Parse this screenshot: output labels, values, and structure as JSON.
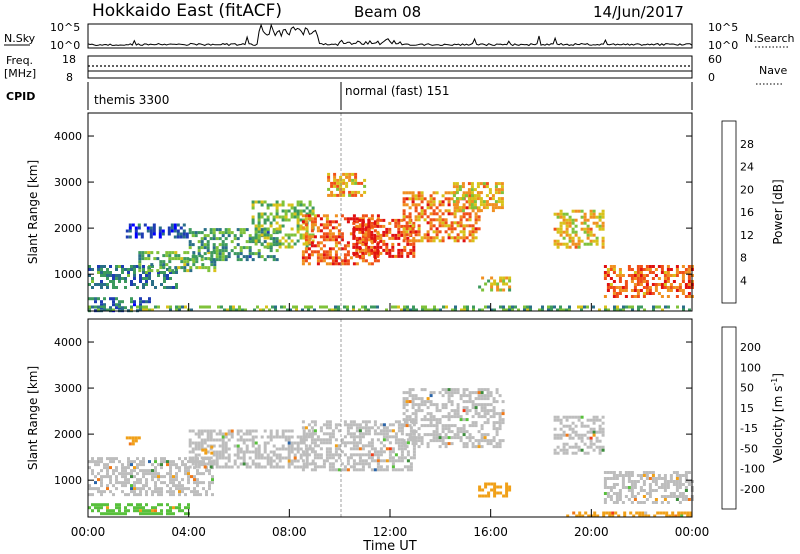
{
  "header": {
    "station": "Hokkaido East (fitACF)",
    "beam": "Beam 08",
    "date": "14/Jun/2017"
  },
  "nsky_panel": {
    "left_label": "N.Sky",
    "right_label": "N.Search",
    "left_ticks": [
      "10^5",
      "10^0"
    ],
    "right_ticks": [
      "10^5",
      "10^0"
    ]
  },
  "freq_panel": {
    "left_label_1": "Freq.",
    "left_label_2": "[MHz]",
    "right_label": "Nave",
    "left_ticks": [
      "18",
      "8"
    ],
    "right_ticks": [
      "60",
      "0"
    ]
  },
  "cpid_panel": {
    "label": "CPID",
    "modes": [
      "themis 3300",
      "normal (fast) 151"
    ]
  },
  "colors": {
    "power_scale": [
      "#0000ff",
      "#1e3cb4",
      "#2a6e88",
      "#3d9a5e",
      "#7fc23a",
      "#d8c21a",
      "#f09020",
      "#f05018",
      "#e01010"
    ],
    "velocity_scale": [
      "#0000dd",
      "#2a64a8",
      "#3c8c3c",
      "#58c03c",
      "#c0c0c0",
      "#f0a018",
      "#f07818",
      "#f03c18",
      "#e00000"
    ],
    "ground_scatter": "#bdbdbd"
  },
  "chart_data": [
    {
      "type": "heatmap",
      "panel": "power",
      "ylabel": "Slant Range [km]",
      "yticks": [
        "1000",
        "2000",
        "3000",
        "4000"
      ],
      "ylim": [
        200,
        4500
      ],
      "colorbar_label": "Power [dB]",
      "colorbar_ticks": [
        "4",
        "8",
        "12",
        "16",
        "20",
        "24",
        "28"
      ],
      "colorbar_range": [
        0,
        32
      ],
      "regions": [
        {
          "t": [
            0.0,
            3.5
          ],
          "r": [
            700,
            1200
          ],
          "level": 10
        },
        {
          "t": [
            0.0,
            2.5
          ],
          "r": [
            200,
            500
          ],
          "level": 8
        },
        {
          "t": [
            2.0,
            5.0
          ],
          "r": [
            1100,
            1500
          ],
          "level": 14
        },
        {
          "t": [
            1.5,
            4.0
          ],
          "r": [
            1800,
            2100
          ],
          "level": 6
        },
        {
          "t": [
            4.0,
            7.5
          ],
          "r": [
            1300,
            2000
          ],
          "level": 12
        },
        {
          "t": [
            6.5,
            9.0
          ],
          "r": [
            1600,
            2600
          ],
          "level": 16
        },
        {
          "t": [
            8.5,
            11.5
          ],
          "r": [
            1200,
            2300
          ],
          "level": 26
        },
        {
          "t": [
            10.5,
            13.0
          ],
          "r": [
            1400,
            2200
          ],
          "level": 28
        },
        {
          "t": [
            12.5,
            15.5
          ],
          "r": [
            1700,
            2800
          ],
          "level": 24
        },
        {
          "t": [
            14.5,
            16.5
          ],
          "r": [
            2400,
            3000
          ],
          "level": 20
        },
        {
          "t": [
            9.5,
            11.0
          ],
          "r": [
            2700,
            3200
          ],
          "level": 22
        },
        {
          "t": [
            15.5,
            16.8
          ],
          "r": [
            650,
            950
          ],
          "level": 18
        },
        {
          "t": [
            18.5,
            20.5
          ],
          "r": [
            1600,
            2400
          ],
          "level": 20
        },
        {
          "t": [
            20.5,
            24.0
          ],
          "r": [
            500,
            1200
          ],
          "level": 26
        },
        {
          "t": [
            0.0,
            24.0
          ],
          "r": [
            200,
            320
          ],
          "level": 14
        }
      ]
    },
    {
      "type": "heatmap",
      "panel": "velocity",
      "ylabel": "Slant Range [km]",
      "yticks": [
        "1000",
        "2000",
        "3000",
        "4000"
      ],
      "ylim": [
        200,
        4500
      ],
      "colorbar_label": "Velocity [m s^-1]",
      "colorbar_ticks": [
        "200",
        "100",
        "50",
        "15",
        "-15",
        "-50",
        "-100",
        "-200"
      ],
      "colorbar_range": [
        -250,
        250
      ],
      "regions": [
        {
          "t": [
            0.0,
            5.0
          ],
          "r": [
            700,
            1500
          ],
          "level": 0
        },
        {
          "t": [
            4.0,
            9.0
          ],
          "r": [
            1300,
            2100
          ],
          "level": 0
        },
        {
          "t": [
            8.5,
            13.0
          ],
          "r": [
            1200,
            2300
          ],
          "level": 0
        },
        {
          "t": [
            12.5,
            16.5
          ],
          "r": [
            1700,
            3000
          ],
          "level": 0
        },
        {
          "t": [
            18.5,
            20.5
          ],
          "r": [
            1600,
            2400
          ],
          "level": 0
        },
        {
          "t": [
            20.5,
            24.0
          ],
          "r": [
            500,
            1200
          ],
          "level": 0
        },
        {
          "t": [
            0.0,
            4.0
          ],
          "r": [
            250,
            500
          ],
          "level": 40
        },
        {
          "t": [
            15.5,
            16.8
          ],
          "r": [
            650,
            950
          ],
          "level": -50
        },
        {
          "t": [
            19.0,
            24.0
          ],
          "r": [
            200,
            320
          ],
          "level": -40
        },
        {
          "t": [
            1.5,
            2.0
          ],
          "r": [
            1800,
            1950
          ],
          "level": -60
        },
        {
          "t": [
            4.5,
            5.0
          ],
          "r": [
            1600,
            1750
          ],
          "level": -50
        }
      ]
    }
  ],
  "xaxis": {
    "ticks": [
      "00:00",
      "04:00",
      "08:00",
      "12:00",
      "16:00",
      "20:00",
      "00:00"
    ],
    "xlim": [
      0,
      24
    ],
    "label": "Time UT"
  }
}
